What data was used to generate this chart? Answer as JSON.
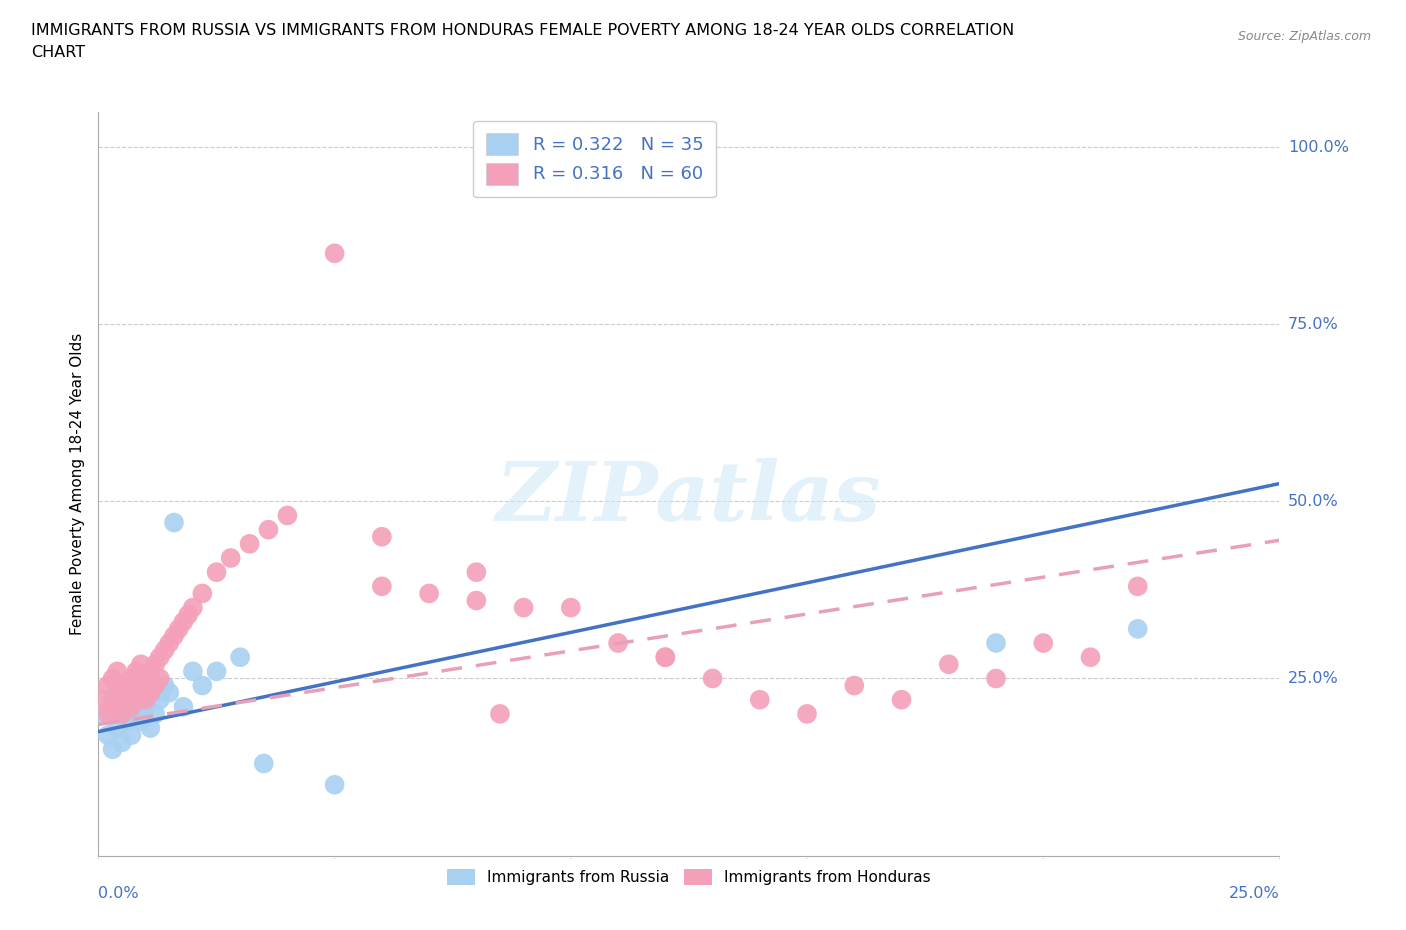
{
  "title_line1": "IMMIGRANTS FROM RUSSIA VS IMMIGRANTS FROM HONDURAS FEMALE POVERTY AMONG 18-24 YEAR OLDS CORRELATION",
  "title_line2": "CHART",
  "source_text": "Source: ZipAtlas.com",
  "ylabel": "Female Poverty Among 18-24 Year Olds",
  "color_russia": "#A8D0F0",
  "color_honduras": "#F4A0B8",
  "color_russia_line": "#4472C4",
  "color_honduras_line": "#E8A0B8",
  "color_label": "#4472C4",
  "watermark_text": "ZIPatlas",
  "xlim": [
    0.0,
    0.25
  ],
  "ylim": [
    0.0,
    1.05
  ],
  "russia_line_x0": 0.0,
  "russia_line_x1": 0.25,
  "russia_line_y0": 0.175,
  "russia_line_y1": 0.525,
  "honduras_line_x0": 0.0,
  "honduras_line_x1": 0.25,
  "honduras_line_y0": 0.185,
  "honduras_line_y1": 0.445,
  "russia_x": [
    0.001,
    0.002,
    0.003,
    0.003,
    0.004,
    0.004,
    0.005,
    0.005,
    0.006,
    0.006,
    0.007,
    0.007,
    0.008,
    0.008,
    0.009,
    0.009,
    0.01,
    0.01,
    0.011,
    0.011,
    0.012,
    0.012,
    0.013,
    0.014,
    0.015,
    0.016,
    0.018,
    0.02,
    0.022,
    0.025,
    0.03,
    0.035,
    0.05,
    0.19,
    0.22
  ],
  "russia_y": [
    0.2,
    0.17,
    0.22,
    0.15,
    0.18,
    0.24,
    0.2,
    0.16,
    0.19,
    0.22,
    0.17,
    0.21,
    0.2,
    0.23,
    0.19,
    0.22,
    0.21,
    0.24,
    0.18,
    0.25,
    0.2,
    0.23,
    0.22,
    0.24,
    0.23,
    0.47,
    0.21,
    0.26,
    0.24,
    0.26,
    0.28,
    0.13,
    0.1,
    0.3,
    0.32
  ],
  "honduras_x": [
    0.001,
    0.002,
    0.002,
    0.003,
    0.003,
    0.004,
    0.004,
    0.005,
    0.005,
    0.006,
    0.006,
    0.007,
    0.007,
    0.008,
    0.008,
    0.009,
    0.009,
    0.01,
    0.01,
    0.011,
    0.011,
    0.012,
    0.012,
    0.013,
    0.013,
    0.014,
    0.015,
    0.016,
    0.017,
    0.018,
    0.019,
    0.02,
    0.022,
    0.025,
    0.028,
    0.032,
    0.036,
    0.04,
    0.05,
    0.06,
    0.07,
    0.08,
    0.09,
    0.11,
    0.12,
    0.13,
    0.15,
    0.17,
    0.19,
    0.21,
    0.06,
    0.08,
    0.1,
    0.12,
    0.14,
    0.16,
    0.18,
    0.2,
    0.22,
    0.085
  ],
  "honduras_y": [
    0.22,
    0.2,
    0.24,
    0.21,
    0.25,
    0.22,
    0.26,
    0.23,
    0.2,
    0.24,
    0.22,
    0.25,
    0.21,
    0.26,
    0.23,
    0.27,
    0.24,
    0.25,
    0.22,
    0.26,
    0.23,
    0.27,
    0.24,
    0.28,
    0.25,
    0.29,
    0.3,
    0.31,
    0.32,
    0.33,
    0.34,
    0.35,
    0.37,
    0.4,
    0.42,
    0.44,
    0.46,
    0.48,
    0.85,
    0.38,
    0.37,
    0.36,
    0.35,
    0.3,
    0.28,
    0.25,
    0.2,
    0.22,
    0.25,
    0.28,
    0.45,
    0.4,
    0.35,
    0.28,
    0.22,
    0.24,
    0.27,
    0.3,
    0.38,
    0.2
  ],
  "yticks": [
    0.0,
    0.25,
    0.5,
    0.75,
    1.0
  ],
  "ytick_labels": [
    "",
    "25.0%",
    "50.0%",
    "75.0%",
    "100.0%"
  ],
  "xtick_left": "0.0%",
  "xtick_right": "25.0%"
}
